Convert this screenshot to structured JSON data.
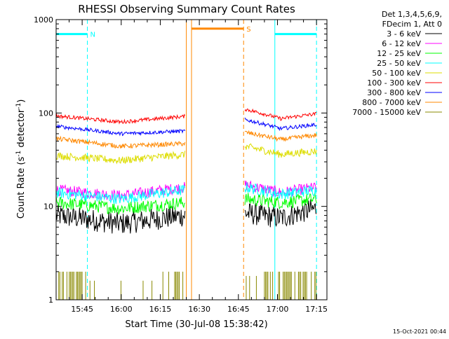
{
  "chart_data": {
    "type": "line",
    "title": "RHESSI Observing Summary Count Rates",
    "xlabel": "Start Time (30-Jul-08 15:38:42)",
    "ylabel_main": "Count Rate (s",
    "ylabel_sup1": "-1",
    "ylabel_mid": " detector",
    "ylabel_sup2": "-1",
    "ylabel_end": ")",
    "y_scale": "log",
    "ylim": [
      1,
      1000
    ],
    "xlim_minutes": [
      -4,
      100
    ],
    "x_ticks": [
      {
        "label": "15:45",
        "value": 6
      },
      {
        "label": "16:00",
        "value": 21
      },
      {
        "label": "16:15",
        "value": 36
      },
      {
        "label": "16:30",
        "value": 51
      },
      {
        "label": "16:45",
        "value": 66
      },
      {
        "label": "17:00",
        "value": 81
      },
      {
        "label": "17:15",
        "value": 96
      }
    ],
    "y_ticks": [
      {
        "label": "1",
        "value": 1
      },
      {
        "label": "10",
        "value": 10
      },
      {
        "label": "100",
        "value": 100
      },
      {
        "label": "1000",
        "value": 1000
      }
    ],
    "legend_header": [
      "Det 1,3,4,5,6,9,",
      "FDecim 1, Att 0"
    ],
    "legend_position": "top-right-outside",
    "flags": [
      {
        "label": "N",
        "start": -4,
        "end": 8,
        "level": 700,
        "color": "#00ffff"
      },
      {
        "label": "",
        "start": 80,
        "end": 96,
        "level": 700,
        "color": "#00ffff"
      },
      {
        "label": "S",
        "start": 48,
        "end": 68,
        "level": 800,
        "color": "#ff8800"
      }
    ],
    "markers": [
      {
        "minute": 8,
        "color": "#00ffff",
        "style": "dashed"
      },
      {
        "minute": 80,
        "color": "#00ffff",
        "style": "solid"
      },
      {
        "minute": 96,
        "color": "#00ffff",
        "style": "dashed"
      },
      {
        "minute": 46,
        "color": "#ff8800",
        "style": "solid"
      },
      {
        "minute": 48,
        "color": "#ff8800",
        "style": "solid"
      },
      {
        "minute": 68,
        "color": "#ff8800",
        "style": "dashed"
      }
    ],
    "segments": [
      [
        -4,
        45.5
      ],
      [
        68.5,
        96
      ]
    ],
    "series": [
      {
        "name": "3 - 6 keV",
        "color": "#000000",
        "s1": [
          8,
          6.5,
          8
        ],
        "s2": [
          8.5,
          7.5,
          9.5
        ],
        "noise": 0.12
      },
      {
        "name": "6 - 12 keV",
        "color": "#ff00ff",
        "s1": [
          15,
          13,
          16
        ],
        "s2": [
          17,
          14,
          16
        ],
        "noise": 0.06
      },
      {
        "name": "12 - 25 keV",
        "color": "#00ff00",
        "s1": [
          11,
          9.5,
          11
        ],
        "s2": [
          12,
          11,
          12
        ],
        "noise": 0.07
      },
      {
        "name": "25 - 50 keV",
        "color": "#00ffff",
        "s1": [
          14,
          12,
          15
        ],
        "s2": [
          16,
          13.5,
          15
        ],
        "noise": 0.06
      },
      {
        "name": "50 - 100 keV",
        "color": "#dddd00",
        "s1": [
          35,
          31,
          36
        ],
        "s2": [
          44,
          36,
          39
        ],
        "noise": 0.04
      },
      {
        "name": "100 - 300 keV",
        "color": "#ff0000",
        "s1": [
          93,
          80,
          92
        ],
        "s2": [
          110,
          87,
          98
        ],
        "noise": 0.02
      },
      {
        "name": "300 - 800 keV",
        "color": "#0000ff",
        "s1": [
          72,
          60,
          64
        ],
        "s2": [
          85,
          68,
          75
        ],
        "noise": 0.02
      },
      {
        "name": "800 - 7000 keV",
        "color": "#ff8800",
        "s1": [
          53,
          44,
          47
        ],
        "s2": [
          62,
          52,
          58
        ],
        "noise": 0.025
      },
      {
        "name": "7000 - 15000 keV",
        "color": "#888800",
        "s1": [
          1,
          1,
          1
        ],
        "s2": [
          1,
          1,
          1
        ],
        "noise": 0,
        "type": "spikes"
      }
    ],
    "footer_date": "15-Oct-2021 00:44"
  }
}
